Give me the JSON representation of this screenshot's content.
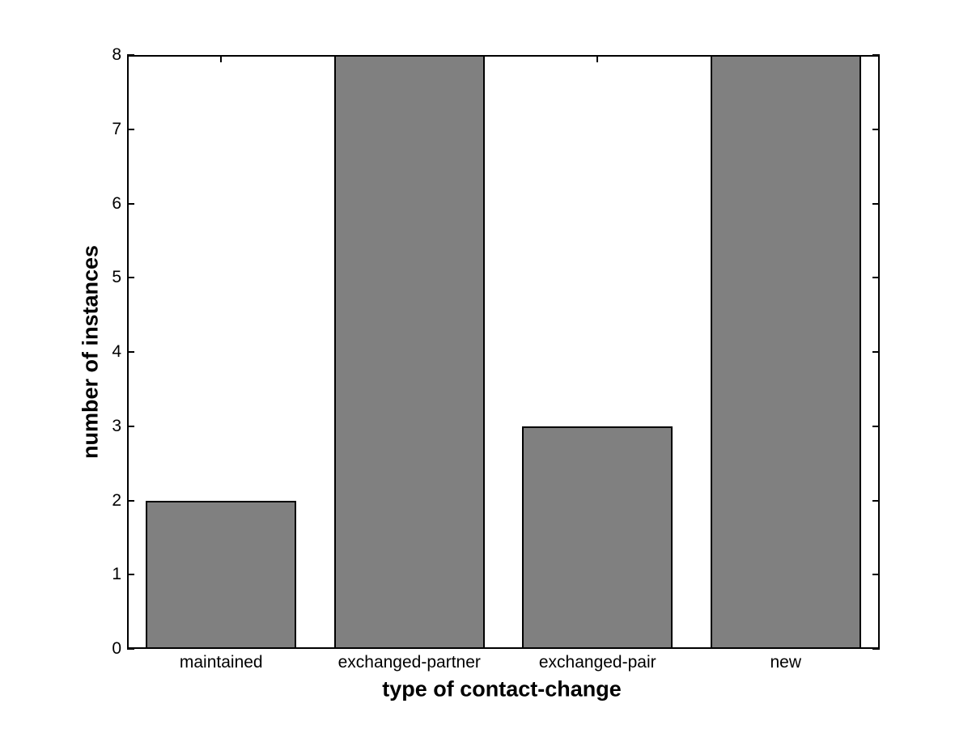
{
  "figure": {
    "background": "#ffffff",
    "axis_color": "#000000",
    "text_color": "#000000"
  },
  "chart_data": {
    "type": "bar",
    "categories": [
      "maintained",
      "exchanged-partner",
      "exchanged-pair",
      "new"
    ],
    "values": [
      2,
      8,
      3,
      8
    ],
    "title": "",
    "xlabel": "type of contact-change",
    "ylabel": "number of instances",
    "ylim": [
      0,
      8
    ],
    "yticks": [
      0,
      1,
      2,
      3,
      4,
      5,
      6,
      7,
      8
    ],
    "bar_fill": "#808080",
    "bar_edge": "#000000",
    "bar_relative_width": 0.8,
    "grid": false,
    "legend": null,
    "box": true,
    "ticks_inward_all_sides": true
  }
}
